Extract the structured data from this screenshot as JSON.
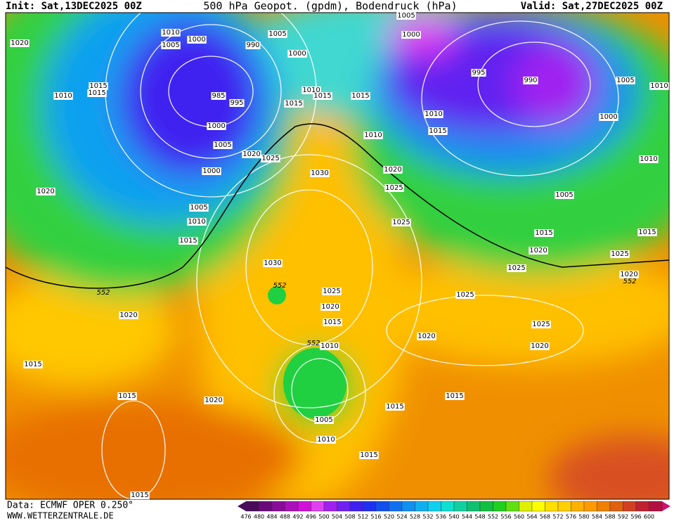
{
  "header": {
    "init": "Init: Sat,13DEC2025 00Z",
    "title": "500 hPa Geopot. (gpdm), Bodendruck (hPa)",
    "valid": "Valid: Sat,27DEC2025 00Z"
  },
  "isobar_labels": [
    1010,
    1000,
    1005,
    1005,
    990,
    1000,
    1020,
    1015,
    1015,
    1010,
    985,
    995,
    1010,
    1015,
    1015,
    1015,
    1000,
    1005,
    1020,
    1025,
    1000,
    1030,
    1020,
    1005,
    1010,
    1015,
    1030,
    1025,
    1020,
    1015,
    1010,
    1020,
    1015,
    1015,
    1020,
    1005,
    1010,
    1015,
    1015,
    1015,
    1020,
    1025,
    1025,
    1025,
    1020,
    1020,
    1015,
    1005,
    1010,
    1000,
    1005,
    990,
    995,
    1000,
    1005,
    1010,
    1015,
    1010,
    1020,
    1025,
    1025,
    1015,
    1025,
    1020,
    1010,
    1015
  ],
  "geopotential_labels": [
    552,
    552,
    552,
    552
  ],
  "colorbar": {
    "values": [
      476,
      480,
      484,
      488,
      492,
      496,
      500,
      504,
      508,
      512,
      516,
      520,
      524,
      528,
      532,
      536,
      540,
      544,
      548,
      552,
      556,
      560,
      564,
      568,
      572,
      576,
      580,
      584,
      588,
      592,
      596,
      600
    ],
    "colors": [
      "#4a0a5a",
      "#6a0a7a",
      "#8a0a9a",
      "#aa10ba",
      "#d010d8",
      "#e040f0",
      "#a020f0",
      "#7020f0",
      "#4020f0",
      "#2030f0",
      "#1050f0",
      "#1070f0",
      "#1090f0",
      "#10b0f0",
      "#10d0f0",
      "#10e0d0",
      "#10d0a0",
      "#10c070",
      "#10c040",
      "#20d020",
      "#60e010",
      "#e0f000",
      "#ffff00",
      "#ffe000",
      "#ffd000",
      "#ffb000",
      "#ff9a00",
      "#f08000",
      "#e06010",
      "#d04020",
      "#c02030",
      "#b01040"
    ]
  },
  "footer": {
    "data": "Data: ECMWF OPER 0.250°",
    "site": "WWW.WETTERZENTRALE.DE"
  }
}
